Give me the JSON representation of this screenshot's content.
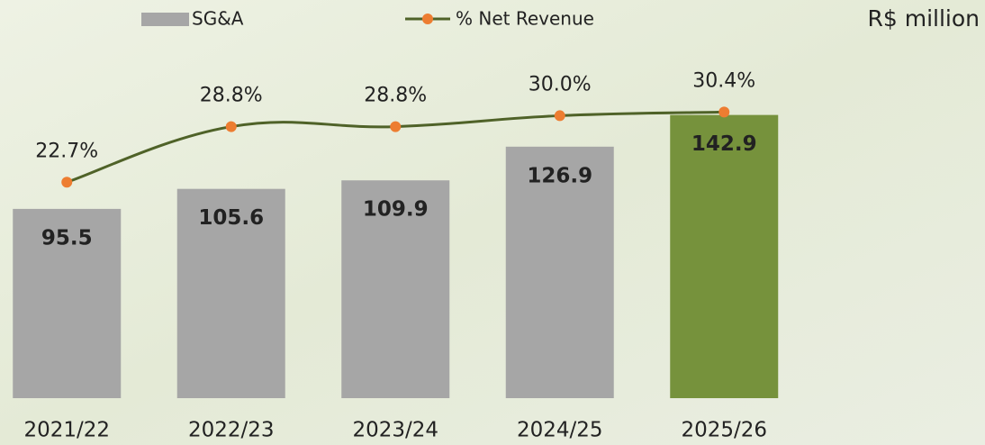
{
  "chart_data": {
    "type": "bar_line",
    "unit_label": "R$ million",
    "categories": [
      "2021/22",
      "2022/23",
      "2023/24",
      "2024/25",
      "2025/26"
    ],
    "series": [
      {
        "name": "SG&A",
        "type": "bar",
        "color": "#a6a6a6",
        "colors": [
          "#a6a6a6",
          "#a6a6a6",
          "#a6a6a6",
          "#a6a6a6",
          "#76923c"
        ],
        "values": [
          95.5,
          105.6,
          109.9,
          126.9,
          142.9
        ]
      },
      {
        "name": "% Net Revenue",
        "type": "line",
        "axis": "y2",
        "color": "#4f6228",
        "marker_color": "#ed7d31",
        "values": [
          22.7,
          28.8,
          28.8,
          30.0,
          30.4
        ],
        "value_labels": [
          "22.7%",
          "28.8%",
          "28.8%",
          "30.0%",
          "30.4%"
        ]
      }
    ],
    "ylim": [
      0,
      200
    ],
    "y2lim": [
      -1,
      42.5
    ],
    "legend": "top"
  }
}
